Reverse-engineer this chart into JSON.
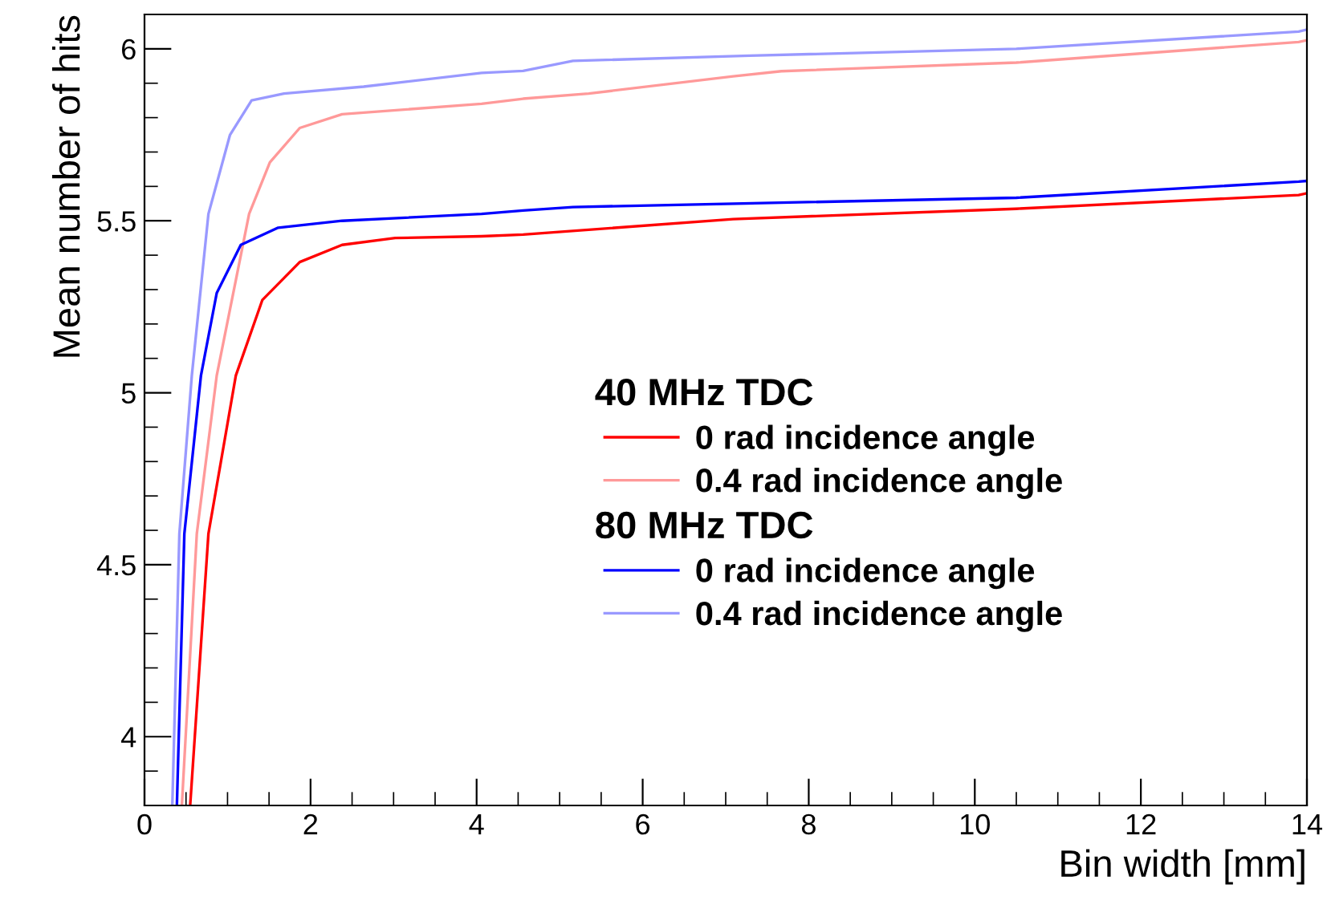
{
  "chart_data": {
    "type": "line",
    "xlabel": "Bin width [mm]",
    "ylabel": "Mean number of hits",
    "xlim": [
      0,
      14
    ],
    "xticks": [
      0,
      2,
      4,
      6,
      8,
      10,
      12,
      14
    ],
    "ylim": [
      3.8,
      6.1
    ],
    "yticks": [
      4,
      4.5,
      5,
      5.5,
      6
    ],
    "grid": false,
    "legend": "right",
    "marker": "none",
    "line_style": "solid",
    "annotations": [
      "40 MHz TDC",
      "80 MHz TDC"
    ],
    "series": [
      {
        "name": "0 rad incidence angle",
        "color": "#ff0000",
        "x": [
          0.55,
          0.77,
          1.1,
          1.42,
          1.87,
          2.38,
          3.02,
          4.06,
          4.56,
          7.09,
          10.5,
          13.9,
          14
        ],
        "values": [
          3.8,
          4.59,
          5.05,
          5.27,
          5.38,
          5.43,
          5.45,
          5.455,
          5.46,
          5.505,
          5.535,
          5.575,
          5.58
        ]
      },
      {
        "name": "0.4 rad incidence angle",
        "color": "#ff9999",
        "x": [
          0.45,
          0.63,
          0.87,
          1.26,
          1.51,
          1.87,
          2.38,
          4.06,
          4.56,
          5.35,
          7.09,
          7.67,
          10.5,
          13.9,
          14
        ],
        "values": [
          3.8,
          4.59,
          5.05,
          5.52,
          5.67,
          5.77,
          5.81,
          5.84,
          5.855,
          5.87,
          5.92,
          5.935,
          5.96,
          6.02,
          6.025
        ]
      },
      {
        "name": "0 rad incidence angle",
        "color": "#0000ff",
        "x": [
          0.39,
          0.48,
          0.68,
          0.87,
          1.16,
          1.61,
          2.38,
          4.06,
          4.56,
          5.16,
          10.5,
          13.9,
          14
        ],
        "values": [
          3.8,
          4.59,
          5.05,
          5.29,
          5.43,
          5.48,
          5.5,
          5.52,
          5.53,
          5.54,
          5.567,
          5.614,
          5.616
        ]
      },
      {
        "name": "0.4 rad incidence angle",
        "color": "#9999ff",
        "x": [
          0.335,
          0.42,
          0.57,
          0.77,
          1.03,
          1.29,
          1.68,
          2.64,
          4.06,
          4.56,
          5.16,
          7.29,
          10.5,
          13.9,
          14
        ],
        "values": [
          3.8,
          4.59,
          5.05,
          5.52,
          5.75,
          5.85,
          5.87,
          5.89,
          5.93,
          5.936,
          5.965,
          5.98,
          6.0,
          6.05,
          6.056
        ]
      }
    ]
  }
}
